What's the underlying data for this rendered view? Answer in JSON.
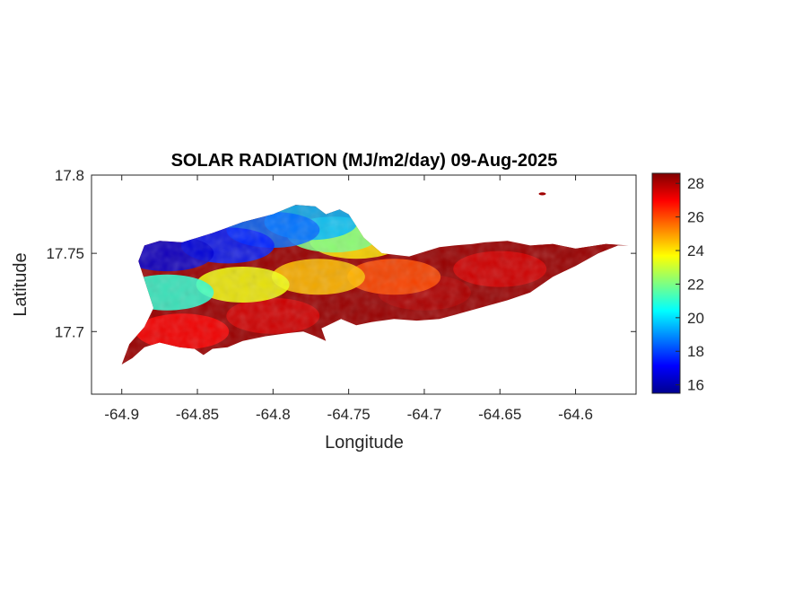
{
  "chart_data": {
    "type": "heatmap",
    "title": "SOLAR RADIATION (MJ/m2/day) 09-Aug-2025",
    "xlabel": "Longitude",
    "ylabel": "Latitude",
    "xlim": [
      -64.92,
      -64.56
    ],
    "ylim": [
      17.66,
      17.8
    ],
    "x_ticks": [
      -64.9,
      -64.85,
      -64.8,
      -64.75,
      -64.7,
      -64.65,
      -64.6
    ],
    "x_tick_labels": [
      "-64.9",
      "-64.85",
      "-64.8",
      "-64.75",
      "-64.7",
      "-64.65",
      "-64.6"
    ],
    "y_ticks": [
      17.7,
      17.75,
      17.8
    ],
    "y_tick_labels": [
      "17.7",
      "17.75",
      "17.8"
    ],
    "colorbar": {
      "colormap": "jet",
      "range": [
        15.5,
        28.6
      ],
      "ticks": [
        16,
        18,
        20,
        22,
        24,
        26,
        28
      ],
      "tick_labels": [
        "16",
        "18",
        "20",
        "22",
        "24",
        "26",
        "28"
      ]
    },
    "region_outline": [
      [
        -64.9,
        17.679
      ],
      [
        -64.893,
        17.683
      ],
      [
        -64.885,
        17.69
      ],
      [
        -64.875,
        17.693
      ],
      [
        -64.862,
        17.69
      ],
      [
        -64.852,
        17.689
      ],
      [
        -64.846,
        17.685
      ],
      [
        -64.84,
        17.689
      ],
      [
        -64.83,
        17.69
      ],
      [
        -64.82,
        17.694
      ],
      [
        -64.805,
        17.697
      ],
      [
        -64.79,
        17.699
      ],
      [
        -64.78,
        17.7
      ],
      [
        -64.772,
        17.697
      ],
      [
        -64.765,
        17.694
      ],
      [
        -64.768,
        17.702
      ],
      [
        -64.755,
        17.708
      ],
      [
        -64.745,
        17.704
      ],
      [
        -64.735,
        17.706
      ],
      [
        -64.72,
        17.708
      ],
      [
        -64.705,
        17.707
      ],
      [
        -64.69,
        17.708
      ],
      [
        -64.675,
        17.712
      ],
      [
        -64.66,
        17.716
      ],
      [
        -64.645,
        17.72
      ],
      [
        -64.63,
        17.725
      ],
      [
        -64.615,
        17.735
      ],
      [
        -64.6,
        17.742
      ],
      [
        -64.585,
        17.75
      ],
      [
        -64.572,
        17.755
      ],
      [
        -64.565,
        17.755
      ],
      [
        -64.58,
        17.756
      ],
      [
        -64.6,
        17.753
      ],
      [
        -64.615,
        17.756
      ],
      [
        -64.63,
        17.755
      ],
      [
        -64.645,
        17.758
      ],
      [
        -64.66,
        17.757
      ],
      [
        -64.668,
        17.756
      ],
      [
        -64.68,
        17.755
      ],
      [
        -64.69,
        17.754
      ],
      [
        -64.71,
        17.748
      ],
      [
        -64.728,
        17.75
      ],
      [
        -64.74,
        17.76
      ],
      [
        -64.75,
        17.775
      ],
      [
        -64.756,
        17.778
      ],
      [
        -64.765,
        17.775
      ],
      [
        -64.772,
        17.78
      ],
      [
        -64.785,
        17.781
      ],
      [
        -64.8,
        17.775
      ],
      [
        -64.82,
        17.77
      ],
      [
        -64.84,
        17.763
      ],
      [
        -64.86,
        17.757
      ],
      [
        -64.875,
        17.758
      ],
      [
        -64.885,
        17.755
      ],
      [
        -64.889,
        17.745
      ],
      [
        -64.884,
        17.73
      ],
      [
        -64.879,
        17.715
      ],
      [
        -64.885,
        17.703
      ],
      [
        -64.895,
        17.692
      ],
      [
        -64.9,
        17.679
      ]
    ],
    "islet": [
      -64.622,
      17.788
    ],
    "field_samples": [
      {
        "lon": -64.87,
        "lat": 17.75,
        "value": 16.5
      },
      {
        "lon": -64.83,
        "lat": 17.755,
        "value": 17.5
      },
      {
        "lon": -64.8,
        "lat": 17.765,
        "value": 18.5
      },
      {
        "lon": -64.775,
        "lat": 17.77,
        "value": 19.5
      },
      {
        "lon": -64.76,
        "lat": 17.762,
        "value": 22.0
      },
      {
        "lon": -64.745,
        "lat": 17.758,
        "value": 24.0
      },
      {
        "lon": -64.87,
        "lat": 17.725,
        "value": 21.0
      },
      {
        "lon": -64.82,
        "lat": 17.73,
        "value": 23.5
      },
      {
        "lon": -64.77,
        "lat": 17.735,
        "value": 24.5
      },
      {
        "lon": -64.72,
        "lat": 17.735,
        "value": 26.0
      },
      {
        "lon": -64.86,
        "lat": 17.7,
        "value": 27.0
      },
      {
        "lon": -64.8,
        "lat": 17.71,
        "value": 27.5
      },
      {
        "lon": -64.7,
        "lat": 17.725,
        "value": 28.0
      },
      {
        "lon": -64.65,
        "lat": 17.74,
        "value": 27.5
      },
      {
        "lon": -64.6,
        "lat": 17.75,
        "value": 28.3
      }
    ]
  }
}
